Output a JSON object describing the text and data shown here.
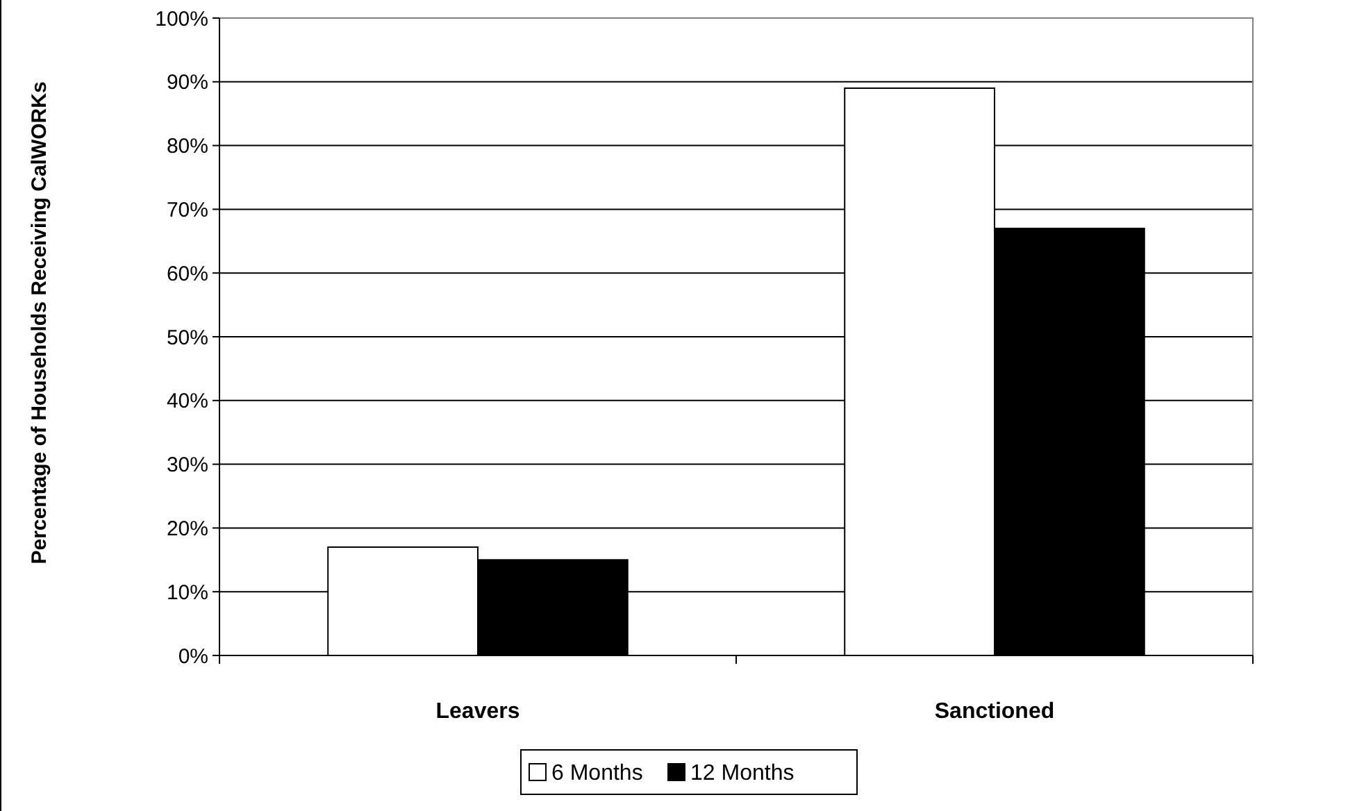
{
  "chart_data": {
    "type": "bar",
    "ylabel": "Percentage of Households Receiving CalWORKs",
    "categories": [
      "Leavers",
      "Sanctioned"
    ],
    "series": [
      {
        "name": "6 Months",
        "color": "#ffffff",
        "values": [
          17,
          89
        ]
      },
      {
        "name": "12 Months",
        "color": "#000000",
        "values": [
          15,
          67
        ]
      }
    ],
    "ylim": [
      0,
      100
    ],
    "yticks": [
      {
        "value": 0,
        "label": "0%"
      },
      {
        "value": 10,
        "label": "10%"
      },
      {
        "value": 20,
        "label": "20%"
      },
      {
        "value": 30,
        "label": "30%"
      },
      {
        "value": 40,
        "label": "40%"
      },
      {
        "value": 50,
        "label": "50%"
      },
      {
        "value": 60,
        "label": "60%"
      },
      {
        "value": 70,
        "label": "70%"
      },
      {
        "value": 80,
        "label": "80%"
      },
      {
        "value": 90,
        "label": "90%"
      },
      {
        "value": 100,
        "label": "100%"
      }
    ],
    "grid": "y",
    "legend": "bottom"
  }
}
